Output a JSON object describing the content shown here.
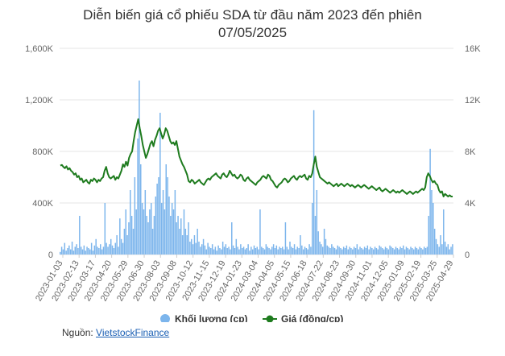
{
  "title": {
    "line1": "Diễn biến giá cổ phiếu SDA từ đầu năm 2023 đến phiên",
    "line2": "07/05/2025"
  },
  "source": {
    "label": "Nguồn: ",
    "link_text": "VietstockFinance"
  },
  "chart_data": {
    "type": "bar+line",
    "y_left": {
      "ticks": [
        "0",
        "400K",
        "800K",
        "1,200K",
        "1,600K"
      ],
      "range": [
        0,
        1600000
      ]
    },
    "y_right": {
      "ticks": [
        "0",
        "4K",
        "8K",
        "12K",
        "16K"
      ],
      "range": [
        0,
        16000
      ]
    },
    "x_tick_labels": [
      "2023-01-03",
      "2023-02-13",
      "2023-03-17",
      "2023-04-20",
      "2023-05-29",
      "2023-06-30",
      "2023-08-03",
      "2023-09-08",
      "2023-10-12",
      "2023-11-15",
      "2023-12-19",
      "2024-01-23",
      "2024-03-04",
      "2024-04-05",
      "2024-05-15",
      "2024-06-18",
      "2024-07-22",
      "2024-08-23",
      "2024-09-30",
      "2024-11-01",
      "2024-12-05",
      "2025-01-09",
      "2025-02-19",
      "2025-03-25",
      "2025-04-29"
    ],
    "series": [
      {
        "name": "Khối lượng (cp)",
        "type": "bar",
        "axis": "left",
        "color": "#7cb5ec",
        "values": [
          20000,
          60000,
          40000,
          90000,
          30000,
          50000,
          70000,
          40000,
          100000,
          30000,
          60000,
          80000,
          50000,
          300000,
          60000,
          40000,
          70000,
          30000,
          60000,
          50000,
          40000,
          90000,
          30000,
          70000,
          120000,
          60000,
          50000,
          80000,
          40000,
          60000,
          400000,
          90000,
          60000,
          80000,
          120000,
          70000,
          50000,
          90000,
          150000,
          60000,
          280000,
          120000,
          90000,
          200000,
          350000,
          150000,
          250000,
          500000,
          300000,
          200000,
          600000,
          350000,
          900000,
          1350000,
          700000,
          400000,
          350000,
          500000,
          300000,
          250000,
          350000,
          400000,
          200000,
          300000,
          450000,
          550000,
          600000,
          1100000,
          400000,
          500000,
          350000,
          700000,
          600000,
          450000,
          300000,
          400000,
          350000,
          500000,
          250000,
          300000,
          200000,
          280000,
          150000,
          350000,
          200000,
          150000,
          250000,
          100000,
          120000,
          80000,
          150000,
          90000,
          200000,
          100000,
          60000,
          80000,
          120000,
          70000,
          40000,
          90000,
          60000,
          50000,
          80000,
          40000,
          60000,
          30000,
          70000,
          50000,
          40000,
          100000,
          60000,
          80000,
          50000,
          60000,
          40000,
          250000,
          70000,
          50000,
          120000,
          60000,
          40000,
          80000,
          50000,
          60000,
          40000,
          50000,
          80000,
          30000,
          60000,
          40000,
          70000,
          50000,
          60000,
          40000,
          350000,
          60000,
          50000,
          40000,
          80000,
          60000,
          50000,
          40000,
          60000,
          80000,
          50000,
          70000,
          40000,
          60000,
          50000,
          60000,
          40000,
          250000,
          60000,
          40000,
          100000,
          60000,
          50000,
          80000,
          40000,
          60000,
          50000,
          150000,
          70000,
          40000,
          60000,
          50000,
          40000,
          80000,
          60000,
          400000,
          1120000,
          300000,
          500000,
          180000,
          100000,
          80000,
          60000,
          200000,
          120000,
          70000,
          60000,
          50000,
          80000,
          60000,
          50000,
          40000,
          70000,
          60000,
          50000,
          40000,
          60000,
          50000,
          70000,
          40000,
          60000,
          50000,
          40000,
          60000,
          50000,
          80000,
          40000,
          60000,
          50000,
          40000,
          60000,
          50000,
          70000,
          40000,
          60000,
          50000,
          40000,
          60000,
          50000,
          40000,
          70000,
          60000,
          50000,
          40000,
          60000,
          50000,
          40000,
          70000,
          60000,
          50000,
          40000,
          60000,
          50000,
          40000,
          60000,
          50000,
          70000,
          40000,
          60000,
          50000,
          40000,
          60000,
          50000,
          40000,
          60000,
          50000,
          40000,
          60000,
          50000,
          40000,
          60000,
          50000,
          60000,
          300000,
          820000,
          500000,
          400000,
          200000,
          120000,
          80000,
          60000,
          150000,
          80000,
          350000,
          100000,
          60000,
          80000,
          40000,
          60000,
          80000
        ]
      },
      {
        "name": "Giá (đồng/cp)",
        "type": "line",
        "axis": "right",
        "color": "#1e7b1e",
        "values": [
          6900,
          6950,
          6800,
          6700,
          6850,
          6600,
          6700,
          6500,
          6400,
          6200,
          6300,
          6000,
          6100,
          5800,
          5900,
          5600,
          5700,
          5800,
          5600,
          5500,
          5800,
          5700,
          5900,
          5800,
          5600,
          5800,
          5700,
          5900,
          6000,
          6500,
          6800,
          6300,
          6000,
          5900,
          6000,
          6100,
          5800,
          6000,
          5900,
          6200,
          6500,
          7000,
          6800,
          7200,
          6900,
          7500,
          7800,
          8000,
          8800,
          9500,
          10000,
          10500,
          9800,
          9200,
          8500,
          8000,
          7500,
          7800,
          8200,
          8600,
          8800,
          8400,
          8900,
          9200,
          9600,
          9800,
          9400,
          9000,
          9300,
          9800,
          9600,
          9200,
          8800,
          8600,
          8700,
          8500,
          8800,
          8200,
          7600,
          7300,
          7000,
          6800,
          6500,
          6200,
          5700,
          5600,
          5800,
          5700,
          5500,
          5600,
          5700,
          5800,
          5600,
          5500,
          5400,
          5600,
          5800,
          5900,
          5800,
          6000,
          6100,
          6200,
          6300,
          6100,
          6000,
          5900,
          6200,
          6300,
          6100,
          6000,
          6200,
          6500,
          6300,
          6100,
          6200,
          6000,
          5900,
          6000,
          6200,
          6100,
          5800,
          5700,
          5900,
          6000,
          5800,
          5700,
          5600,
          5500,
          5400,
          5600,
          5700,
          5800,
          6000,
          6100,
          6000,
          5900,
          6200,
          6100,
          5800,
          5700,
          5500,
          5300,
          5200,
          5400,
          5500,
          5600,
          5800,
          5900,
          5800,
          5600,
          5700,
          5900,
          6000,
          6100,
          5900,
          5800,
          6000,
          6100,
          6000,
          6100,
          6200,
          5900,
          5800,
          6100,
          6000,
          6300,
          7000,
          7600,
          6800,
          6400,
          6000,
          5900,
          5800,
          5700,
          5600,
          5500,
          5600,
          5500,
          5400,
          5300,
          5400,
          5500,
          5300,
          5400,
          5500,
          5400,
          5300,
          5400,
          5500,
          5400,
          5300,
          5400,
          5300,
          5200,
          5300,
          5400,
          5300,
          5200,
          5300,
          5400,
          5300,
          5200,
          5100,
          5200,
          5300,
          5200,
          5100,
          5000,
          5100,
          5200,
          5000,
          4900,
          5000,
          5100,
          5000,
          4900,
          4800,
          4900,
          5000,
          4900,
          4800,
          4900,
          4800,
          4900,
          5000,
          4900,
          4800,
          4700,
          4800,
          4900,
          4800,
          4700,
          4800,
          4900,
          4800,
          4900,
          5000,
          5100,
          5000,
          5200,
          6000,
          6300,
          6100,
          5800,
          5600,
          5700,
          5500,
          5400,
          5000,
          4800,
          4900,
          4500,
          4700,
          4600,
          4500,
          4600,
          4500,
          4500
        ]
      }
    ],
    "legend": {
      "position": "bottom",
      "items": [
        "Khối lượng (cp)",
        "Giá (đồng/cp)"
      ]
    },
    "grid": true
  }
}
